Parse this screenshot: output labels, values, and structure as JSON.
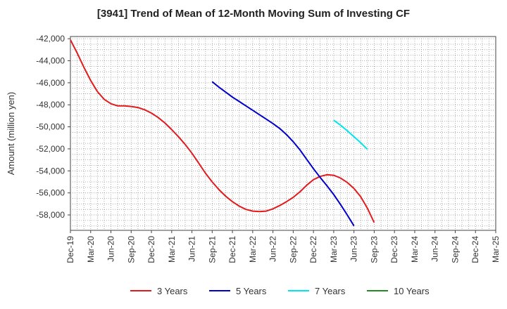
{
  "chart_data": {
    "type": "line",
    "title": "[3941]  Trend of Mean of 12-Month Moving Sum of Investing CF",
    "xlabel": "",
    "ylabel": "Amount (million yen)",
    "ylim": [
      -59400,
      -41800
    ],
    "yticks": [
      -42000,
      -44000,
      -46000,
      -48000,
      -50000,
      -52000,
      -54000,
      -56000,
      -58000
    ],
    "ytick_labels": [
      "-42,000",
      "-44,000",
      "-46,000",
      "-48,000",
      "-50,000",
      "-52,000",
      "-54,000",
      "-56,000",
      "-58,000"
    ],
    "x_start": "Dec-19",
    "x_months": 63,
    "xtick_labels": [
      "Dec-19",
      "Mar-20",
      "Jun-20",
      "Sep-20",
      "Dec-20",
      "Mar-21",
      "Jun-21",
      "Sep-21",
      "Dec-21",
      "Mar-22",
      "Jun-22",
      "Sep-22",
      "Dec-22",
      "Mar-23",
      "Jun-23",
      "Sep-23",
      "Dec-23",
      "Mar-24",
      "Jun-24",
      "Sep-24",
      "Dec-24",
      "Mar-25"
    ],
    "grid": true,
    "legend_position": "bottom",
    "series": [
      {
        "name": "3 Years",
        "color": "#e31a1c",
        "start_index": 0,
        "values": [
          -42100,
          -43300,
          -44600,
          -45800,
          -46800,
          -47500,
          -47900,
          -48100,
          -48100,
          -48150,
          -48250,
          -48450,
          -48750,
          -49150,
          -49650,
          -50250,
          -50900,
          -51600,
          -52400,
          -53300,
          -54200,
          -55000,
          -55700,
          -56300,
          -56800,
          -57200,
          -57500,
          -57650,
          -57700,
          -57650,
          -57450,
          -57150,
          -56800,
          -56400,
          -55900,
          -55300,
          -54800,
          -54500,
          -54350,
          -54400,
          -54650,
          -55050,
          -55600,
          -56350,
          -57400,
          -58700
        ]
      },
      {
        "name": "5 Years",
        "color": "#0000cc",
        "start_index": 21,
        "values": [
          -45900,
          -46400,
          -46850,
          -47300,
          -47700,
          -48100,
          -48500,
          -48900,
          -49300,
          -49700,
          -50150,
          -50700,
          -51350,
          -52100,
          -52950,
          -53800,
          -54600,
          -55350,
          -56150,
          -57050,
          -58000,
          -59000
        ]
      },
      {
        "name": "7 Years",
        "color": "#00e5ee",
        "start_index": 39,
        "values": [
          -49400,
          -49850,
          -50350,
          -50900,
          -51450,
          -52050
        ]
      },
      {
        "name": "10 Years",
        "color": "#228b22",
        "start_index": 0,
        "values": []
      }
    ]
  }
}
